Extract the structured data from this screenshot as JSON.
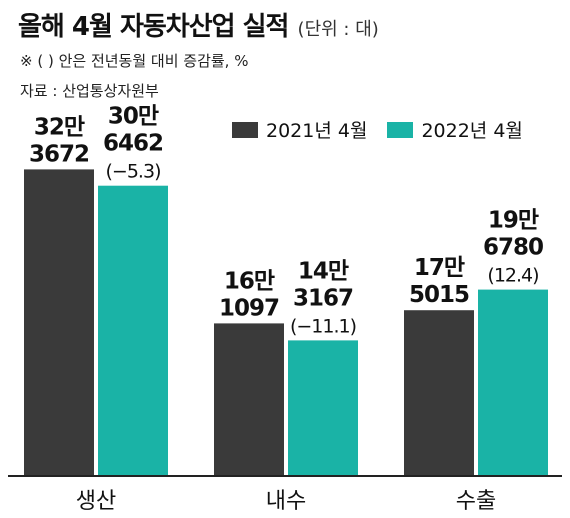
{
  "header": {
    "title": "올해 4월 자동차산업 실적",
    "unit": "(단위 : 대)",
    "note": "※ ( ) 안은 전년동월 대비 증감률, %",
    "source": "자료 : 산업통상자원부"
  },
  "colors": {
    "series_2021": "#3a3a3a",
    "series_2022": "#1ab3a6",
    "axis": "#222222",
    "background": "#ffffff"
  },
  "chart_data": {
    "type": "bar",
    "categories": [
      "생산",
      "내수",
      "수출"
    ],
    "series": [
      {
        "name": "2021년 4월",
        "values": [
          323672,
          161097,
          175015
        ],
        "labels": [
          [
            "32만",
            "3672"
          ],
          [
            "16만",
            "1097"
          ],
          [
            "17만",
            "5015"
          ]
        ]
      },
      {
        "name": "2022년 4월",
        "values": [
          306462,
          143167,
          196780
        ],
        "labels": [
          [
            "30만",
            "6462",
            "(−5.3)"
          ],
          [
            "14만",
            "3167",
            "(−11.1)"
          ],
          [
            "19만",
            "6780",
            "(12.4)"
          ]
        ]
      }
    ],
    "ylim": [
      0,
      340000
    ],
    "legend": "top-right",
    "grid": false
  }
}
